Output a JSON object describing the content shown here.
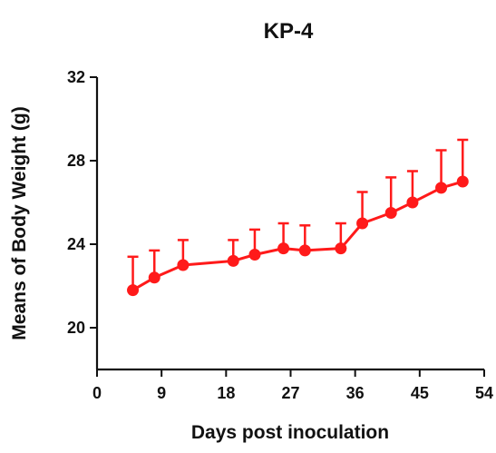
{
  "chart_data": {
    "type": "line",
    "title": "KP-4",
    "xlabel": "Days post inoculation",
    "ylabel": "Means of Body Weight (g)",
    "xlim": [
      0,
      54
    ],
    "ylim": [
      18,
      32
    ],
    "xticks": [
      0,
      9,
      18,
      27,
      36,
      45,
      54
    ],
    "yticks": [
      20,
      24,
      28,
      32
    ],
    "grid": false,
    "legend": "none",
    "series": [
      {
        "color": "#ff1a1a",
        "x": [
          5,
          8,
          12,
          19,
          22,
          26,
          29,
          34,
          37,
          41,
          44,
          48,
          51
        ],
        "y": [
          21.8,
          22.4,
          23.0,
          23.2,
          23.5,
          23.8,
          23.7,
          23.8,
          25.0,
          25.5,
          26.0,
          26.7,
          27.0
        ],
        "error_upper": [
          1.6,
          1.3,
          1.2,
          1.0,
          1.2,
          1.2,
          1.2,
          1.2,
          1.5,
          1.7,
          1.5,
          1.8,
          2.0
        ]
      }
    ]
  }
}
